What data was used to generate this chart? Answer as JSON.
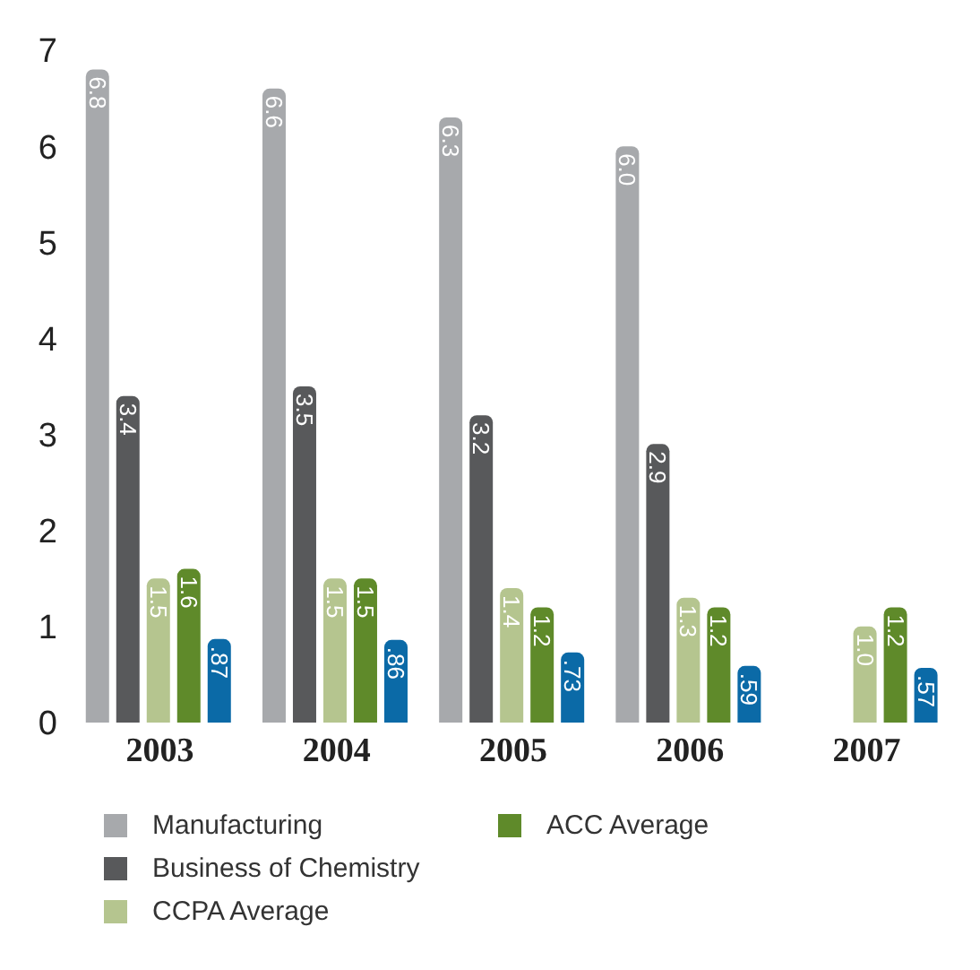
{
  "chart_data": {
    "type": "bar",
    "categories": [
      "2003",
      "2004",
      "2005",
      "2006",
      "2007"
    ],
    "series": [
      {
        "name": "Manufacturing",
        "color": "#a7a9ac",
        "values": [
          6.8,
          6.6,
          6.3,
          6.0,
          null
        ],
        "value_labels": [
          "6.8",
          "6.6",
          "6.3",
          "6.0",
          null
        ]
      },
      {
        "name": "Business of Chemistry",
        "color": "#58595b",
        "values": [
          3.4,
          3.5,
          3.2,
          2.9,
          null
        ],
        "value_labels": [
          "3.4",
          "3.5",
          "3.2",
          "2.9",
          null
        ]
      },
      {
        "name": "CCPA Average",
        "color": "#b5c58f",
        "values": [
          1.5,
          1.5,
          1.4,
          1.3,
          1.0
        ],
        "value_labels": [
          "1.5",
          "1.5",
          "1.4",
          "1.3",
          "1.0"
        ]
      },
      {
        "name": "ACC Average",
        "color": "#5f8a2a",
        "values": [
          1.6,
          1.5,
          1.2,
          1.2,
          1.2
        ],
        "value_labels": [
          "1.6",
          "1.5",
          "1.2",
          "1.2",
          "1.2"
        ]
      },
      {
        "color": "#0b6aa7",
        "values": [
          0.87,
          0.86,
          0.73,
          0.59,
          0.57
        ],
        "value_labels": [
          ".87",
          ".86",
          ".73",
          ".59",
          ".57"
        ]
      }
    ],
    "ylim": [
      0,
      7
    ],
    "yticks": [
      0,
      1,
      2,
      3,
      4,
      5,
      6,
      7
    ],
    "grid": false,
    "legend": "bottom"
  }
}
